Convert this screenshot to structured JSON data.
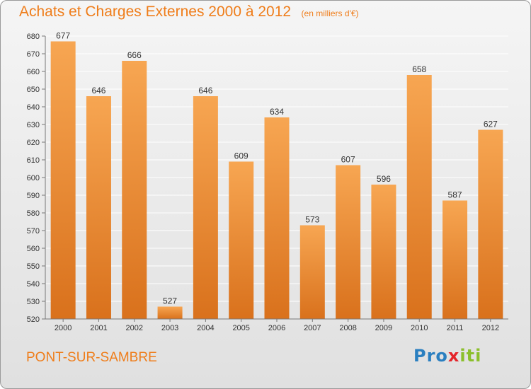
{
  "title": "Achats et Charges Externes 2000 à 2012",
  "unit": "(en milliers d'€)",
  "commune": "PONT-SUR-SAMBRE",
  "logo": {
    "p1": "Pro",
    "p2": "x",
    "p3": "iti"
  },
  "colors": {
    "bar_light": "#f7a652",
    "bar_dark": "#d9711c",
    "title": "#ef7d1a",
    "grid": "#ffffff",
    "background_top": "#f5f5f5",
    "background_bottom": "#e0e0e0"
  },
  "chart_data": {
    "type": "bar",
    "title": "Achats et Charges Externes 2000 à 2012",
    "categories": [
      "2000",
      "2001",
      "2002",
      "2003",
      "2004",
      "2005",
      "2006",
      "2007",
      "2008",
      "2009",
      "2010",
      "2011",
      "2012"
    ],
    "values": [
      677,
      646,
      666,
      527,
      646,
      609,
      634,
      573,
      607,
      596,
      658,
      587,
      627
    ],
    "ylim": [
      520,
      680
    ],
    "yticks": [
      520,
      530,
      540,
      550,
      560,
      570,
      580,
      590,
      600,
      610,
      620,
      630,
      640,
      650,
      660,
      670,
      680
    ],
    "grid": true,
    "legend": false
  }
}
